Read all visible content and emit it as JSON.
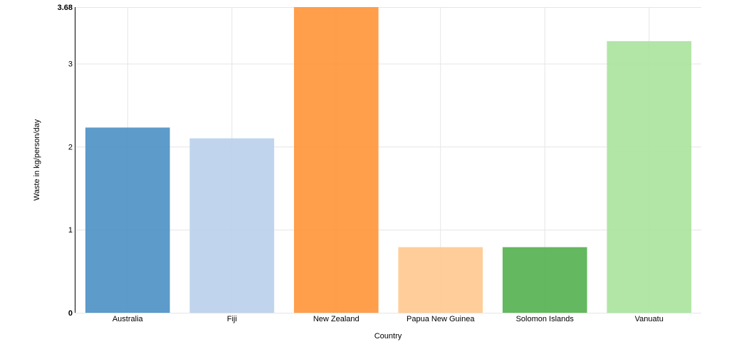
{
  "chart_data": {
    "type": "bar",
    "title": "",
    "xlabel": "Country",
    "ylabel": "Waste in kg/person/day",
    "categories": [
      "Australia",
      "Fiji",
      "New Zealand",
      "Papua New Guinea",
      "Solomon Islands",
      "Vanuatu"
    ],
    "values": [
      2.23,
      2.1,
      3.68,
      0.79,
      0.79,
      3.27
    ],
    "colors": [
      "#4a90c4",
      "#b9cfec",
      "#ff9437",
      "#ffc88e",
      "#53b04e",
      "#a9e39c"
    ],
    "ylim": [
      0,
      3.68
    ],
    "yticks": [
      {
        "value": 0,
        "label": "0"
      },
      {
        "value": 1,
        "label": "1"
      },
      {
        "value": 2,
        "label": "2"
      },
      {
        "value": 3,
        "label": "3"
      },
      {
        "value": 3.68,
        "label": "3.68"
      }
    ],
    "grid": true
  }
}
